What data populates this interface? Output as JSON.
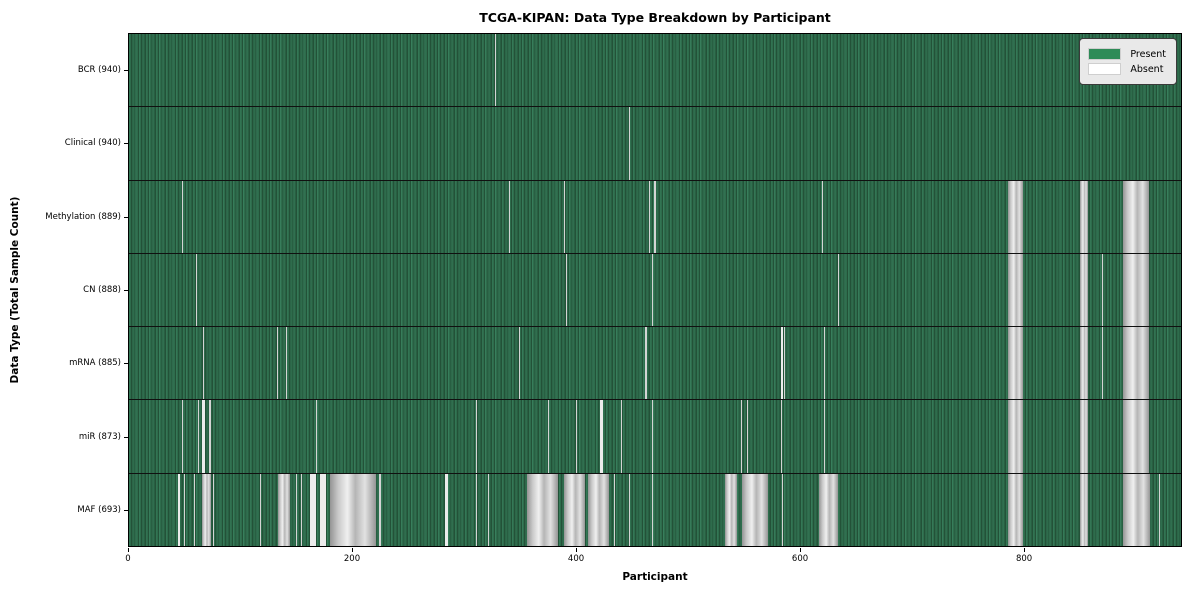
{
  "chart_data": {
    "type": "heatmap",
    "title": "TCGA-KIPAN: Data Type Breakdown by Participant",
    "xlabel": "Participant",
    "ylabel": "Data Type (Total Sample Count)",
    "x_ticks": [
      0,
      200,
      400,
      600,
      800
    ],
    "x_range": [
      0,
      941
    ],
    "n_participants": 941,
    "grid": false,
    "legend_position": "upper right",
    "colors": {
      "present": "#2e8b57",
      "absent": "#ffffff",
      "row_separator": "#101010",
      "legend_background": "#e9e9e9"
    },
    "legend": [
      {
        "label": "Present",
        "color": "#2e8b57"
      },
      {
        "label": "Absent",
        "color": "#ffffff"
      }
    ],
    "rows": [
      {
        "name": "BCR",
        "label": "BCR (940)",
        "present_count": 940,
        "absent_ranges": [
          [
            327,
            328
          ]
        ]
      },
      {
        "name": "Clinical",
        "label": "Clinical (940)",
        "present_count": 940,
        "absent_ranges": [
          [
            447,
            448
          ]
        ]
      },
      {
        "name": "Methylation",
        "label": "Methylation (889)",
        "present_count": 889,
        "absent_ranges": [
          [
            47,
            48
          ],
          [
            340,
            341
          ],
          [
            389,
            390
          ],
          [
            465,
            466
          ],
          [
            470,
            471
          ],
          [
            620,
            621
          ],
          [
            786,
            800
          ],
          [
            851,
            858
          ],
          [
            889,
            912
          ]
        ]
      },
      {
        "name": "CN",
        "label": "CN (888)",
        "present_count": 888,
        "absent_ranges": [
          [
            60,
            61
          ],
          [
            391,
            392
          ],
          [
            468,
            469
          ],
          [
            634,
            635
          ],
          [
            786,
            800
          ],
          [
            851,
            858
          ],
          [
            870,
            871
          ],
          [
            889,
            912
          ]
        ]
      },
      {
        "name": "mRNA",
        "label": "mRNA (885)",
        "present_count": 885,
        "absent_ranges": [
          [
            66,
            67
          ],
          [
            132,
            133
          ],
          [
            140,
            141
          ],
          [
            349,
            350
          ],
          [
            462,
            463
          ],
          [
            583,
            585
          ],
          [
            586,
            587
          ],
          [
            622,
            623
          ],
          [
            786,
            800
          ],
          [
            851,
            858
          ],
          [
            870,
            871
          ],
          [
            889,
            912
          ]
        ]
      },
      {
        "name": "miR",
        "label": "miR (873)",
        "present_count": 873,
        "absent_ranges": [
          [
            47,
            48
          ],
          [
            62,
            63
          ],
          [
            65,
            68
          ],
          [
            72,
            73
          ],
          [
            167,
            168
          ],
          [
            310,
            311
          ],
          [
            375,
            376
          ],
          [
            400,
            401
          ],
          [
            421,
            424
          ],
          [
            440,
            441
          ],
          [
            468,
            469
          ],
          [
            547,
            548
          ],
          [
            553,
            554
          ],
          [
            583,
            584
          ],
          [
            622,
            623
          ],
          [
            786,
            800
          ],
          [
            851,
            858
          ],
          [
            889,
            912
          ]
        ]
      },
      {
        "name": "MAF",
        "label": "MAF (693)",
        "present_count": 693,
        "absent_ranges": [
          [
            44,
            46
          ],
          [
            49,
            50
          ],
          [
            58,
            59
          ],
          [
            65,
            73
          ],
          [
            75,
            76
          ],
          [
            117,
            118
          ],
          [
            133,
            144
          ],
          [
            149,
            150
          ],
          [
            154,
            155
          ],
          [
            162,
            167
          ],
          [
            171,
            176
          ],
          [
            180,
            221
          ],
          [
            224,
            225
          ],
          [
            283,
            285
          ],
          [
            310,
            311
          ],
          [
            321,
            322
          ],
          [
            356,
            384
          ],
          [
            389,
            408
          ],
          [
            411,
            429
          ],
          [
            434,
            435
          ],
          [
            447,
            448
          ],
          [
            468,
            469
          ],
          [
            533,
            544
          ],
          [
            548,
            572
          ],
          [
            584,
            585
          ],
          [
            617,
            634
          ],
          [
            786,
            800
          ],
          [
            851,
            858
          ],
          [
            889,
            913
          ],
          [
            921,
            922
          ]
        ]
      }
    ]
  }
}
